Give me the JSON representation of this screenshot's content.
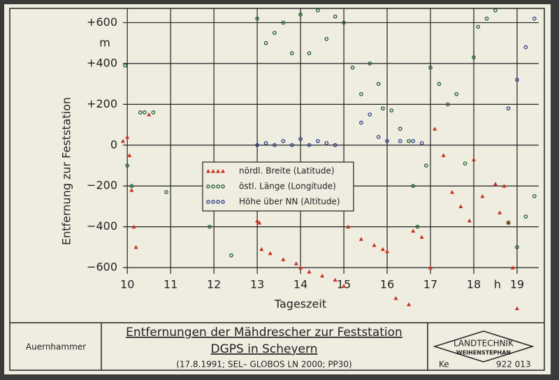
{
  "chart_data": {
    "type": "scatter",
    "ylabel": "Entfernung zur Feststation",
    "xlabel": "Tageszeit",
    "y_unit": "m",
    "x_unit": "h",
    "xlim": [
      9.9,
      19.5
    ],
    "ylim": [
      -870,
      670
    ],
    "xticks": [
      10,
      11,
      12,
      13,
      14,
      15,
      16,
      17,
      18,
      19
    ],
    "yticks": [
      {
        "value": 600,
        "label": "+600"
      },
      {
        "value": 400,
        "label": "+400"
      },
      {
        "value": 200,
        "label": "+200"
      },
      0,
      {
        "value": -200,
        "label": "−200"
      },
      {
        "value": -400,
        "label": "−400"
      },
      {
        "value": -600,
        "label": "−600"
      }
    ],
    "grid": true,
    "legend": "center",
    "series": [
      {
        "name": "nördl. Breite (Latitude)",
        "color": "#c8301e",
        "marker": "triangle",
        "x": [
          9.9,
          10.0,
          10.05,
          10.1,
          10.15,
          10.2,
          10.5,
          13.0,
          13.05,
          13.1,
          13.3,
          13.6,
          13.9,
          14.0,
          14.2,
          14.5,
          14.8,
          15.0,
          15.1,
          15.4,
          15.7,
          15.9,
          16.0,
          16.2,
          16.5,
          16.6,
          16.8,
          17.0,
          17.1,
          17.3,
          17.5,
          17.7,
          17.9,
          18.0,
          18.2,
          18.5,
          18.6,
          18.7,
          18.8,
          18.9,
          19.0
        ],
        "values": [
          20,
          40,
          -50,
          -220,
          -400,
          -500,
          150,
          -370,
          -380,
          -510,
          -530,
          -560,
          -580,
          -600,
          -620,
          -640,
          -660,
          -690,
          -400,
          -460,
          -490,
          -510,
          -520,
          -750,
          -780,
          -420,
          -450,
          -600,
          80,
          -50,
          -230,
          -300,
          -370,
          -70,
          -250,
          -190,
          -330,
          -200,
          -380,
          -600,
          -800
        ]
      },
      {
        "name": "östl. Länge (Longitude)",
        "color": "#1f5a2e",
        "marker": "circle",
        "x": [
          9.95,
          10.0,
          10.1,
          10.3,
          10.4,
          10.6,
          10.9,
          11.9,
          12.4,
          13.0,
          13.2,
          13.4,
          13.6,
          13.8,
          14.0,
          14.2,
          14.4,
          14.6,
          14.8,
          15.0,
          15.2,
          15.4,
          15.6,
          15.8,
          15.9,
          16.1,
          16.3,
          16.5,
          16.6,
          16.7,
          16.9,
          17.0,
          17.2,
          17.4,
          17.6,
          17.8,
          18.0,
          18.1,
          18.3,
          18.5,
          18.8,
          19.0,
          19.2,
          19.4
        ],
        "values": [
          390,
          -100,
          -200,
          160,
          160,
          160,
          -230,
          -400,
          -540,
          620,
          500,
          550,
          600,
          450,
          640,
          450,
          660,
          520,
          630,
          600,
          380,
          250,
          400,
          300,
          180,
          170,
          80,
          20,
          -200,
          -400,
          -100,
          380,
          300,
          200,
          250,
          -90,
          430,
          580,
          620,
          660,
          -380,
          -500,
          -350,
          -250
        ]
      },
      {
        "name": "Höhe über NN (Altitude)",
        "color": "#2a3f86",
        "marker": "circle",
        "x": [
          13.0,
          13.2,
          13.4,
          13.6,
          13.8,
          14.0,
          14.2,
          14.4,
          14.6,
          14.8,
          15.4,
          15.6,
          15.8,
          16.0,
          16.3,
          16.6,
          16.8,
          18.8,
          19.0,
          19.2,
          19.4
        ],
        "values": [
          0,
          10,
          0,
          20,
          0,
          30,
          0,
          20,
          10,
          0,
          110,
          150,
          40,
          20,
          20,
          20,
          10,
          180,
          320,
          480,
          620
        ]
      }
    ]
  },
  "footer": {
    "author": "Auernhammer",
    "title_lines": [
      "Entfernungen der Mähdrescher zur Feststation",
      "DGPS in Scheyern"
    ],
    "subtitle": "(17.8.1991; SEL– GLOBOS LN 2000; PP30)",
    "logo": [
      "LANDTECHNIK",
      "WEIHENSTEPHAN"
    ],
    "code": "Ke",
    "number": "922 013"
  }
}
